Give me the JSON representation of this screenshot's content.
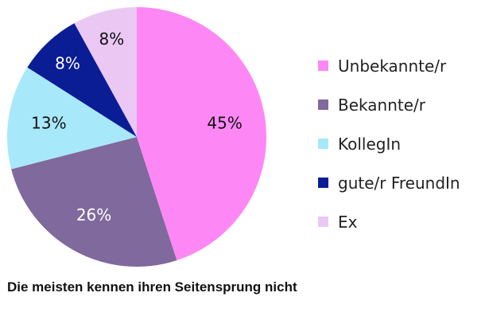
{
  "chart_data": {
    "type": "pie",
    "title": "Die meisten kennen ihren Seitensprung nicht",
    "slices": [
      {
        "name": "Unbekannte/r",
        "value": 45,
        "label": "45%",
        "color": "#fd88f5",
        "label_color": "#111111"
      },
      {
        "name": "Bekannte/r",
        "value": 26,
        "label": "26%",
        "color": "#80699c",
        "label_color": "#ffffff"
      },
      {
        "name": "KollegIn",
        "value": 13,
        "label": "13%",
        "color": "#a8e8fb",
        "label_color": "#111111"
      },
      {
        "name": "gute/r FreundIn",
        "value": 8,
        "label": "8%",
        "color": "#0a1d95",
        "label_color": "#ffffff"
      },
      {
        "name": "Ex",
        "value": 8,
        "label": "8%",
        "color": "#ebc8f4",
        "label_color": "#111111"
      }
    ],
    "legend_position": "right"
  }
}
